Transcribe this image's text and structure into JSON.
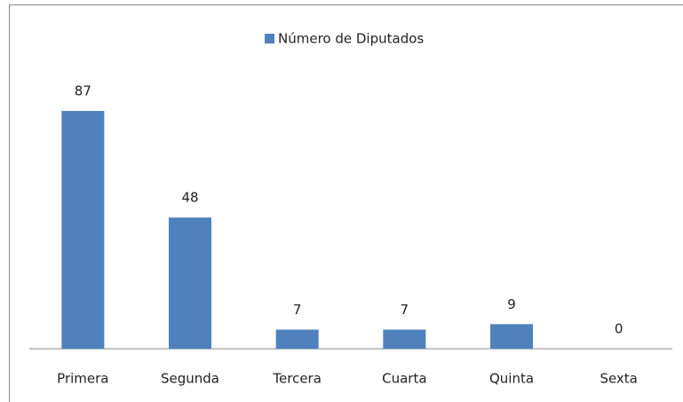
{
  "chart_data": {
    "type": "bar",
    "categories": [
      "Primera",
      "Segunda",
      "Tercera",
      "Cuarta",
      "Quinta",
      "Sexta"
    ],
    "series": [
      {
        "name": "Número de Diputados",
        "color": "#4f81bd",
        "values": [
          87,
          48,
          7,
          7,
          9,
          0
        ]
      }
    ],
    "ylim": [
      0,
      100
    ],
    "legend": "top"
  }
}
